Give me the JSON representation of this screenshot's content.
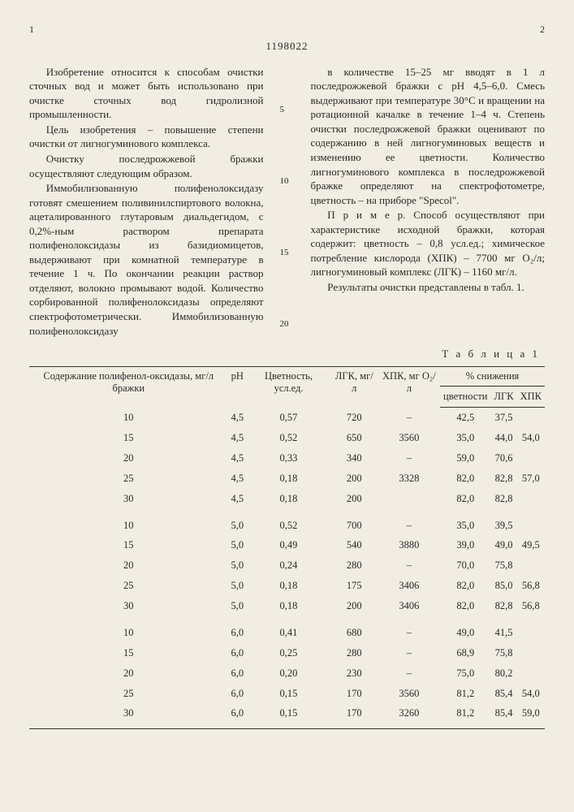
{
  "page": {
    "left_num": "1",
    "doc_number": "1198022",
    "right_num": "2"
  },
  "text": {
    "left_col": [
      "Изобретение относится к способам очистки сточных вод и может быть использовано при очистке сточных вод гидролизной промышленности.",
      "Цель изобретения – повышение степени очистки от лигногуминового комплекса.",
      "Очистку последрожжевой бражки осуществляют следующим образом.",
      "Иммобилизованную полифенолоксидазу готовят смешением поливинилспиртового волокна, ацеталированного глутаровым диальдегидом, с 0,2%-ным раствором препарата полифенолоксидазы из базидиомицетов, выдерживают при комнатной температуре в течение 1 ч. По окончании реакции раствор отделяют, волокно промывают водой. Количество сорбированной полифенолоксидазы определяют спектрофотометрически. Иммобилизованную полифенолоксидазу"
    ],
    "right_col": [
      "в количестве 15–25 мг вводят в 1 л последрожжевой бражки с pH 4,5–6,0. Смесь выдерживают при температуре 30°С и вращении на ротационной качалке в течение 1–4 ч. Степень очистки последрожжевой бражки оценивают по содержанию в ней лигногуминовых веществ и изменению ее цветности. Количество лигногуминового комплекса в последрожжевой бражке определяют на спектрофотометре, цветность – на приборе \"Specol\".",
      "П р и м е р. Способ осуществляют при характеристике исходной бражки, которая содержит: цветность – 0,8 усл.ед.; химическое потребление кислорода (ХПК) – 7700 мг O₂/л; лигногуминовый комплекс (ЛГК) – 1160 мг/л.",
      "Результаты очистки представлены в табл. 1."
    ],
    "line_marks": [
      "5",
      "10",
      "15",
      "20"
    ]
  },
  "table": {
    "caption": "Т а б л и ц а   1",
    "headers": {
      "c1": "Содержание полифенол-оксидазы, мг/л бражки",
      "c2": "pH",
      "c3": "Цветность, усл.ед.",
      "c4": "ЛГК, мг/л",
      "c5": "ХПК, мг O₂/л",
      "c6": "% снижения",
      "c6a": "цветности",
      "c6b": "ЛГК",
      "c6c": "ХПК"
    },
    "rows": [
      [
        "10",
        "4,5",
        "0,57",
        "720",
        "–",
        "42,5",
        "37,5",
        ""
      ],
      [
        "15",
        "4,5",
        "0,52",
        "650",
        "3560",
        "35,0",
        "44,0",
        "54,0"
      ],
      [
        "20",
        "4,5",
        "0,33",
        "340",
        "–",
        "59,0",
        "70,6",
        ""
      ],
      [
        "25",
        "4,5",
        "0,18",
        "200",
        "3328",
        "82,0",
        "82,8",
        "57,0"
      ],
      [
        "30",
        "4,5",
        "0,18",
        "200",
        "",
        "82,0",
        "82,8",
        ""
      ],
      [
        "10",
        "5,0",
        "0,52",
        "700",
        "–",
        "35,0",
        "39,5",
        ""
      ],
      [
        "15",
        "5,0",
        "0,49",
        "540",
        "3880",
        "39,0",
        "49,0",
        "49,5"
      ],
      [
        "20",
        "5,0",
        "0,24",
        "280",
        "–",
        "70,0",
        "75,8",
        ""
      ],
      [
        "25",
        "5,0",
        "0,18",
        "175",
        "3406",
        "82,0",
        "85,0",
        "56,8"
      ],
      [
        "30",
        "5,0",
        "0,18",
        "200",
        "3406",
        "82,0",
        "82,8",
        "56,8"
      ],
      [
        "10",
        "6,0",
        "0,41",
        "680",
        "–",
        "49,0",
        "41,5",
        ""
      ],
      [
        "15",
        "6,0",
        "0,25",
        "280",
        "–",
        "68,9",
        "75,8",
        ""
      ],
      [
        "20",
        "6,0",
        "0,20",
        "230",
        "–",
        "75,0",
        "80,2",
        ""
      ],
      [
        "25",
        "6,0",
        "0,15",
        "170",
        "3560",
        "81,2",
        "85,4",
        "54,0"
      ],
      [
        "30",
        "6,0",
        "0,15",
        "170",
        "3260",
        "81,2",
        "85,4",
        "59,0"
      ]
    ]
  },
  "style": {
    "background": "#f2ede2",
    "text_color": "#2a2a2a",
    "border_color": "#333333",
    "body_fontsize": 13,
    "table_fontsize": 12.5
  }
}
